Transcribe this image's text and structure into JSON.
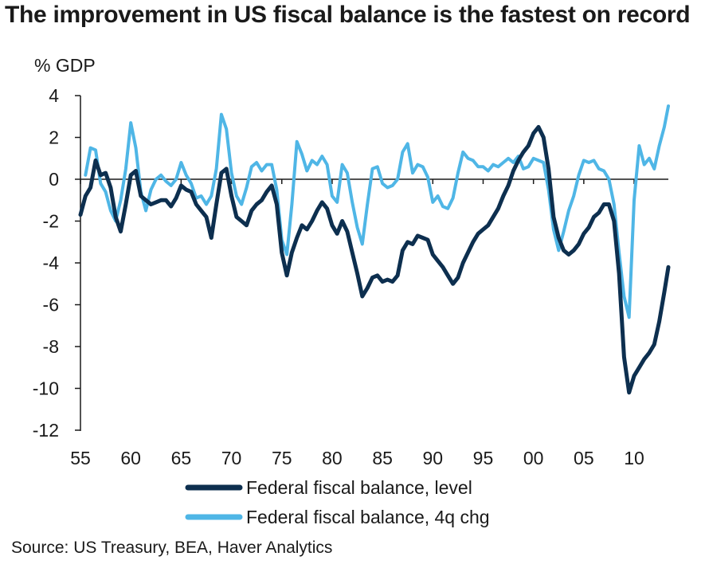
{
  "chart_data": {
    "type": "line",
    "title": "The improvement in US fiscal balance is the fastest on record",
    "ylabel": "% GDP",
    "xlabel": "",
    "ylim": [
      -12,
      4
    ],
    "xlim": [
      1955,
      2013.4
    ],
    "yticks": [
      4,
      2,
      0,
      -2,
      -4,
      -6,
      -8,
      -10,
      -12
    ],
    "xtick_values": [
      1955,
      1960,
      1965,
      1970,
      1975,
      1980,
      1985,
      1990,
      1995,
      2000,
      2005,
      2010
    ],
    "xtick_labels": [
      "55",
      "60",
      "65",
      "70",
      "75",
      "80",
      "85",
      "90",
      "95",
      "00",
      "05",
      "10"
    ],
    "zero_line": true,
    "grid": false,
    "legend_position": "bottom",
    "series": [
      {
        "name": "Federal fiscal balance, level",
        "color": "#0d2f4f",
        "points": [
          [
            1955.0,
            -1.7
          ],
          [
            1955.5,
            -0.8
          ],
          [
            1956.0,
            -0.4
          ],
          [
            1956.5,
            0.9
          ],
          [
            1957.0,
            0.2
          ],
          [
            1957.5,
            0.3
          ],
          [
            1958.0,
            -0.4
          ],
          [
            1958.5,
            -1.8
          ],
          [
            1959.0,
            -2.5
          ],
          [
            1959.5,
            -1.2
          ],
          [
            1960.0,
            0.2
          ],
          [
            1960.5,
            0.4
          ],
          [
            1961.0,
            -0.8
          ],
          [
            1961.5,
            -1.0
          ],
          [
            1962.0,
            -1.2
          ],
          [
            1962.5,
            -1.1
          ],
          [
            1963.0,
            -1.0
          ],
          [
            1963.5,
            -1.0
          ],
          [
            1964.0,
            -1.3
          ],
          [
            1964.5,
            -0.9
          ],
          [
            1965.0,
            -0.3
          ],
          [
            1965.5,
            -0.5
          ],
          [
            1966.0,
            -0.6
          ],
          [
            1966.5,
            -1.2
          ],
          [
            1967.0,
            -1.5
          ],
          [
            1967.5,
            -1.8
          ],
          [
            1968.0,
            -2.8
          ],
          [
            1968.5,
            -1.2
          ],
          [
            1969.0,
            0.3
          ],
          [
            1969.5,
            0.5
          ],
          [
            1970.0,
            -0.8
          ],
          [
            1970.5,
            -1.8
          ],
          [
            1971.0,
            -2.0
          ],
          [
            1971.5,
            -2.2
          ],
          [
            1972.0,
            -1.5
          ],
          [
            1972.5,
            -1.2
          ],
          [
            1973.0,
            -1.0
          ],
          [
            1973.5,
            -0.6
          ],
          [
            1974.0,
            -0.3
          ],
          [
            1974.5,
            -1.2
          ],
          [
            1975.0,
            -3.5
          ],
          [
            1975.5,
            -4.6
          ],
          [
            1976.0,
            -3.5
          ],
          [
            1976.5,
            -2.8
          ],
          [
            1977.0,
            -2.2
          ],
          [
            1977.5,
            -2.4
          ],
          [
            1978.0,
            -2.0
          ],
          [
            1978.5,
            -1.5
          ],
          [
            1979.0,
            -1.1
          ],
          [
            1979.5,
            -1.4
          ],
          [
            1980.0,
            -2.2
          ],
          [
            1980.5,
            -2.6
          ],
          [
            1981.0,
            -2.0
          ],
          [
            1981.5,
            -2.5
          ],
          [
            1982.0,
            -3.5
          ],
          [
            1982.5,
            -4.5
          ],
          [
            1983.0,
            -5.6
          ],
          [
            1983.5,
            -5.2
          ],
          [
            1984.0,
            -4.7
          ],
          [
            1984.5,
            -4.6
          ],
          [
            1985.0,
            -4.9
          ],
          [
            1985.5,
            -4.8
          ],
          [
            1986.0,
            -4.9
          ],
          [
            1986.5,
            -4.6
          ],
          [
            1987.0,
            -3.4
          ],
          [
            1987.5,
            -3.0
          ],
          [
            1988.0,
            -3.1
          ],
          [
            1988.5,
            -2.7
          ],
          [
            1989.0,
            -2.8
          ],
          [
            1989.5,
            -2.9
          ],
          [
            1990.0,
            -3.6
          ],
          [
            1990.5,
            -3.9
          ],
          [
            1991.0,
            -4.2
          ],
          [
            1991.5,
            -4.6
          ],
          [
            1992.0,
            -5.0
          ],
          [
            1992.5,
            -4.7
          ],
          [
            1993.0,
            -4.0
          ],
          [
            1993.5,
            -3.5
          ],
          [
            1994.0,
            -3.0
          ],
          [
            1994.5,
            -2.6
          ],
          [
            1995.0,
            -2.4
          ],
          [
            1995.5,
            -2.2
          ],
          [
            1996.0,
            -1.8
          ],
          [
            1996.5,
            -1.4
          ],
          [
            1997.0,
            -0.8
          ],
          [
            1997.5,
            -0.3
          ],
          [
            1998.0,
            0.4
          ],
          [
            1998.5,
            0.9
          ],
          [
            1999.0,
            1.3
          ],
          [
            1999.5,
            1.6
          ],
          [
            2000.0,
            2.2
          ],
          [
            2000.5,
            2.5
          ],
          [
            2001.0,
            2.0
          ],
          [
            2001.5,
            0.5
          ],
          [
            2002.0,
            -1.8
          ],
          [
            2002.5,
            -2.8
          ],
          [
            2003.0,
            -3.4
          ],
          [
            2003.5,
            -3.6
          ],
          [
            2004.0,
            -3.4
          ],
          [
            2004.5,
            -3.1
          ],
          [
            2005.0,
            -2.6
          ],
          [
            2005.5,
            -2.3
          ],
          [
            2006.0,
            -1.8
          ],
          [
            2006.5,
            -1.6
          ],
          [
            2007.0,
            -1.2
          ],
          [
            2007.5,
            -1.2
          ],
          [
            2008.0,
            -2.0
          ],
          [
            2008.5,
            -4.5
          ],
          [
            2009.0,
            -8.5
          ],
          [
            2009.5,
            -10.2
          ],
          [
            2010.0,
            -9.4
          ],
          [
            2010.5,
            -9.0
          ],
          [
            2011.0,
            -8.6
          ],
          [
            2011.5,
            -8.3
          ],
          [
            2012.0,
            -7.9
          ],
          [
            2012.5,
            -6.8
          ],
          [
            2013.0,
            -5.4
          ],
          [
            2013.4,
            -4.2
          ]
        ]
      },
      {
        "name": "Federal fiscal balance, 4q chg",
        "color": "#4fb6e6",
        "points": [
          [
            1955.5,
            0.2
          ],
          [
            1956.0,
            1.5
          ],
          [
            1956.5,
            1.4
          ],
          [
            1957.0,
            -0.2
          ],
          [
            1957.5,
            -0.6
          ],
          [
            1958.0,
            -1.5
          ],
          [
            1958.5,
            -2.0
          ],
          [
            1959.0,
            -1.0
          ],
          [
            1959.5,
            0.5
          ],
          [
            1960.0,
            2.7
          ],
          [
            1960.5,
            1.5
          ],
          [
            1961.0,
            -0.6
          ],
          [
            1961.5,
            -1.5
          ],
          [
            1962.0,
            -0.5
          ],
          [
            1962.5,
            0.0
          ],
          [
            1963.0,
            0.2
          ],
          [
            1963.5,
            -0.1
          ],
          [
            1964.0,
            -0.3
          ],
          [
            1964.5,
            0.0
          ],
          [
            1965.0,
            0.8
          ],
          [
            1965.5,
            0.2
          ],
          [
            1966.0,
            -0.2
          ],
          [
            1966.5,
            -0.9
          ],
          [
            1967.0,
            -0.8
          ],
          [
            1967.5,
            -1.2
          ],
          [
            1968.0,
            -0.8
          ],
          [
            1968.5,
            0.5
          ],
          [
            1969.0,
            3.1
          ],
          [
            1969.5,
            2.4
          ],
          [
            1970.0,
            0.3
          ],
          [
            1970.5,
            -0.8
          ],
          [
            1971.0,
            -1.2
          ],
          [
            1971.5,
            -0.4
          ],
          [
            1972.0,
            0.6
          ],
          [
            1972.5,
            0.8
          ],
          [
            1973.0,
            0.4
          ],
          [
            1973.5,
            0.7
          ],
          [
            1974.0,
            0.7
          ],
          [
            1974.5,
            -0.5
          ],
          [
            1975.0,
            -2.9
          ],
          [
            1975.5,
            -3.6
          ],
          [
            1976.0,
            -1.2
          ],
          [
            1976.5,
            1.8
          ],
          [
            1977.0,
            1.2
          ],
          [
            1977.5,
            0.4
          ],
          [
            1978.0,
            0.9
          ],
          [
            1978.5,
            0.7
          ],
          [
            1979.0,
            1.1
          ],
          [
            1979.5,
            0.7
          ],
          [
            1980.0,
            -0.8
          ],
          [
            1980.5,
            -1.1
          ],
          [
            1981.0,
            0.7
          ],
          [
            1981.5,
            0.3
          ],
          [
            1982.0,
            -1.1
          ],
          [
            1982.5,
            -2.3
          ],
          [
            1983.0,
            -3.1
          ],
          [
            1983.5,
            -1.2
          ],
          [
            1984.0,
            0.5
          ],
          [
            1984.5,
            0.6
          ],
          [
            1985.0,
            -0.2
          ],
          [
            1985.5,
            -0.4
          ],
          [
            1986.0,
            -0.3
          ],
          [
            1986.5,
            0.0
          ],
          [
            1987.0,
            1.3
          ],
          [
            1987.5,
            1.7
          ],
          [
            1988.0,
            0.3
          ],
          [
            1988.5,
            0.7
          ],
          [
            1989.0,
            0.6
          ],
          [
            1989.5,
            0.1
          ],
          [
            1990.0,
            -1.1
          ],
          [
            1990.5,
            -0.8
          ],
          [
            1991.0,
            -1.3
          ],
          [
            1991.5,
            -1.4
          ],
          [
            1992.0,
            -0.9
          ],
          [
            1992.5,
            0.3
          ],
          [
            1993.0,
            1.3
          ],
          [
            1993.5,
            1.0
          ],
          [
            1994.0,
            0.9
          ],
          [
            1994.5,
            0.6
          ],
          [
            1995.0,
            0.6
          ],
          [
            1995.5,
            0.4
          ],
          [
            1996.0,
            0.7
          ],
          [
            1996.5,
            0.6
          ],
          [
            1997.0,
            0.8
          ],
          [
            1997.5,
            1.0
          ],
          [
            1998.0,
            0.8
          ],
          [
            1998.5,
            1.1
          ],
          [
            1999.0,
            0.5
          ],
          [
            1999.5,
            0.6
          ],
          [
            2000.0,
            1.0
          ],
          [
            2000.5,
            0.9
          ],
          [
            2001.0,
            0.8
          ],
          [
            2001.5,
            -0.5
          ],
          [
            2002.0,
            -2.4
          ],
          [
            2002.5,
            -3.4
          ],
          [
            2003.0,
            -2.5
          ],
          [
            2003.5,
            -1.5
          ],
          [
            2004.0,
            -0.8
          ],
          [
            2004.5,
            0.2
          ],
          [
            2005.0,
            0.9
          ],
          [
            2005.5,
            0.8
          ],
          [
            2006.0,
            0.9
          ],
          [
            2006.5,
            0.5
          ],
          [
            2007.0,
            0.4
          ],
          [
            2007.5,
            0.0
          ],
          [
            2008.0,
            -1.2
          ],
          [
            2008.5,
            -3.5
          ],
          [
            2009.0,
            -5.6
          ],
          [
            2009.5,
            -6.6
          ],
          [
            2010.0,
            -1.0
          ],
          [
            2010.5,
            1.6
          ],
          [
            2011.0,
            0.7
          ],
          [
            2011.5,
            1.0
          ],
          [
            2012.0,
            0.5
          ],
          [
            2012.5,
            1.6
          ],
          [
            2013.0,
            2.5
          ],
          [
            2013.4,
            3.5
          ]
        ]
      }
    ],
    "source": "Source: US Treasury, BEA, Haver Analytics"
  }
}
